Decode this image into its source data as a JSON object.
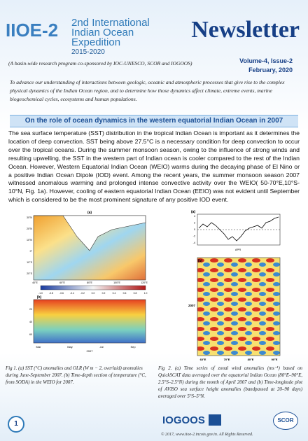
{
  "header": {
    "logo": "IIOE-2",
    "org_lines": [
      "2nd International",
      "Indian Ocean",
      "Expedition",
      "2015-2020"
    ],
    "newsletter": "Newsletter",
    "subtitle": "(A basin-wide research program co-sponsored by IOC-UNESCO, SCOR and IOGOOS)",
    "volume": "Volume-4, Issue-2",
    "date": "February, 2020"
  },
  "intro": "To advance our understanding of interactions between geologic, oceanic and atmospheric processes that give rise to the complex physical dynamics of the Indian Ocean region, and to determine how those dynamics affect climate, extreme events, marine biogeochemical cycles, ecosystems and human populations.",
  "article": {
    "title": "On the role of ocean dynamics in the western equatorial Indian Ocean in 2007",
    "body": "The sea surface temperature (SST) distribution in the tropical Indian Ocean is important as it determines the location of deep convection. SST being above 27.5°C is a necessary condition for deep convection to occur over the tropical oceans. During the summer monsoon season, owing to the influence of strong winds and resulting upwelling, the SST in the western part of Indian ocean is cooler compared to the rest of the Indian Ocean. However, Western Equatorial Indian Ocean (WEIO) warms during the decaying phase of El Nino or a positive Indian Ocean Dipole (IOD) event. Among the recent years, the summer monsoon season 2007 witnessed anomalous warming and prolonged intense convective activity over the WEIO( 50-70°E,10°S-10°N, Fig. 1a). However, cooling of eastern equatorial Indian Ocean (EEIO) was not evident until September which is considered to be the most prominent signature of any positive IOD event."
  },
  "figure1": {
    "panel_a": "(a)",
    "lat_ticks": [
      "30°N",
      "20°N",
      "10°N",
      "0°",
      "10°S",
      "20°S"
    ],
    "lon_ticks": [
      "40°E",
      "60°E",
      "80°E",
      "100°E",
      "120°E"
    ],
    "colorbar_ticks": [
      "-1.0",
      "-0.8",
      "-0.6",
      "-0.4",
      "-0.2",
      "0.0",
      "0.2",
      "0.4",
      "0.6",
      "0.8",
      "1.0"
    ],
    "panel_b": "(b)",
    "depth_ticks": [
      "20",
      "40",
      "60"
    ],
    "month_ticks": [
      "Mar",
      "May",
      "Jul",
      "Sep"
    ],
    "year": "2007",
    "caption": "Fig 1. (a) SST (°C) anomalies and OLR (W m − 2, overlaid) anomalies during June-September 2007. (b) Time-depth section of temperature (°C, from SODA) in the WEIO for 2007."
  },
  "figure2": {
    "panel_a": "(a)",
    "y_ticks": [
      "4",
      "2",
      "0",
      "-2",
      "-4"
    ],
    "x_label": "APR",
    "panel_b": "(b)",
    "year": "2007",
    "lon_ticks": [
      "60°E",
      "70°E",
      "80°E",
      "90°E"
    ],
    "caption": "Fig 2. (a) Time series of zonal wind anomalies (ms⁻¹) based on QuickSCAT data averaged over the equatorial Indian Ocean (80°E–90°E, 2.5°S–2.5°N) during the month of April 2007 and (b) Time-longitude plot of AVISO sea surface height anomalies (bandpassed at 20–90 days) averaged over 5°S–5°N."
  },
  "footer": {
    "page": "1",
    "logo_iogoos": "IOGOOS",
    "logo_scor": "SCOR",
    "copyright": "© 2017, www.iioe-2.incois.gov.in. All Rights Reserved."
  }
}
